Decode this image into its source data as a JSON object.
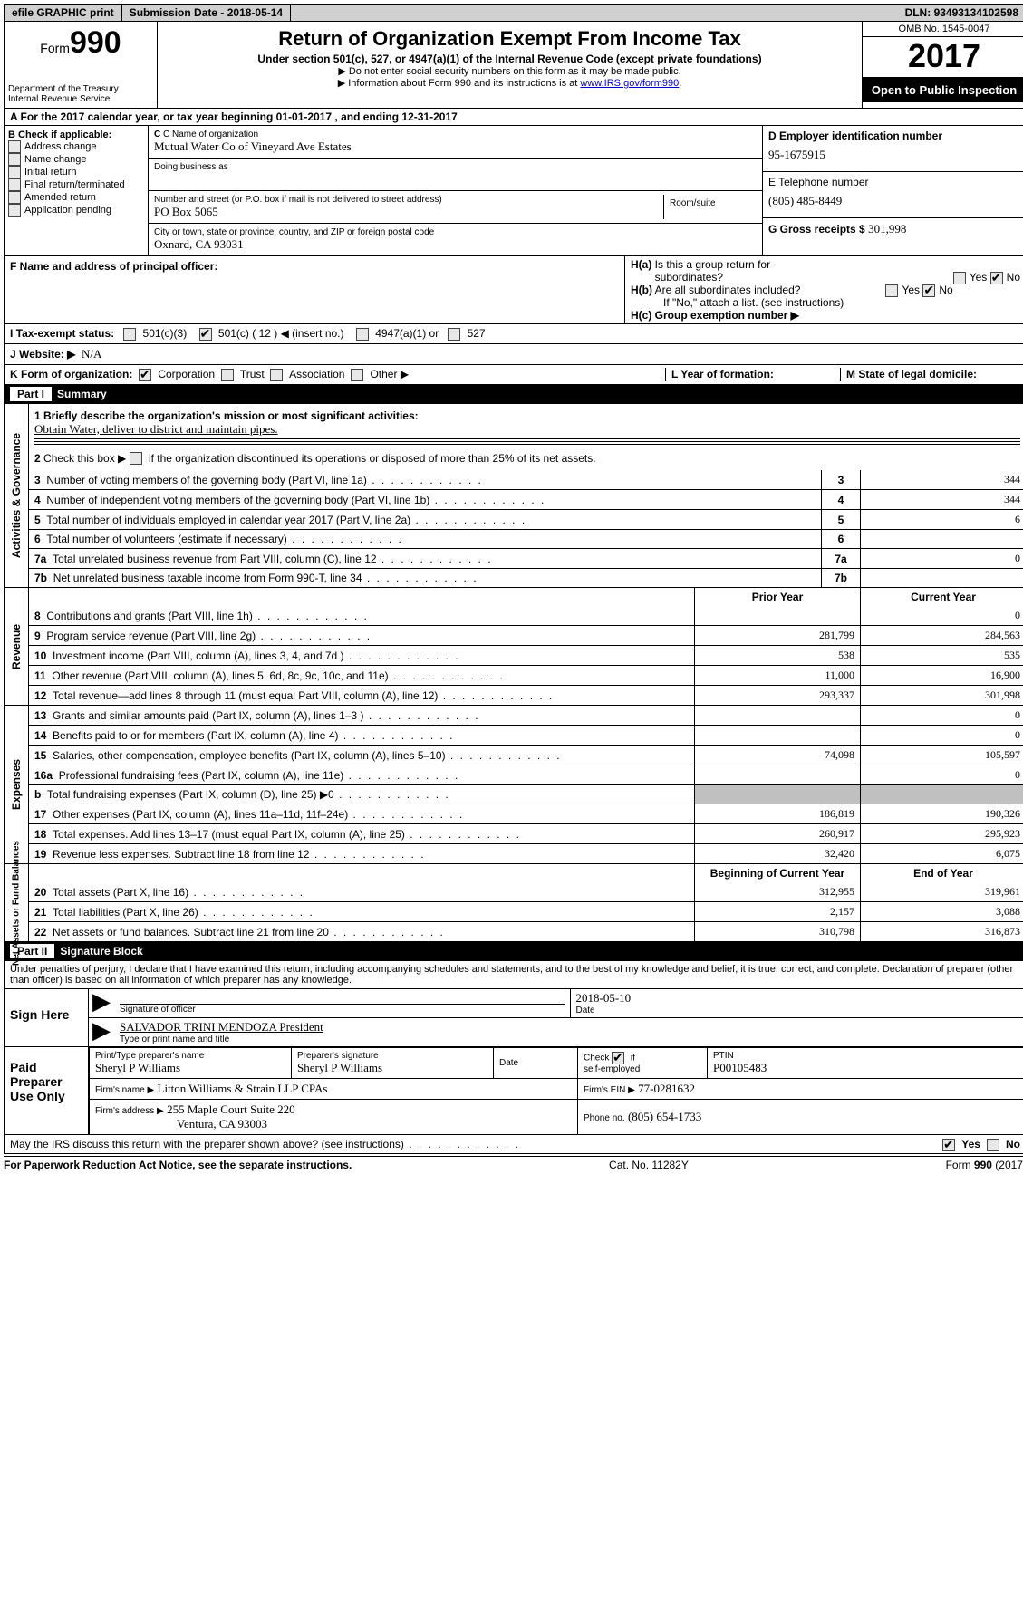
{
  "topbar": {
    "efile": "efile GRAPHIC print",
    "subdate_label": "Submission Date - ",
    "subdate": "2018-05-14",
    "dln_label": "DLN: ",
    "dln": "93493134102598"
  },
  "header": {
    "form_label": "Form",
    "form_no": "990",
    "dept1": "Department of the Treasury",
    "dept2": "Internal Revenue Service",
    "title": "Return of Organization Exempt From Income Tax",
    "subtitle": "Under section 501(c), 527, or 4947(a)(1) of the Internal Revenue Code (except private foundations)",
    "note1": "▶ Do not enter social security numbers on this form as it may be made public.",
    "note2_pre": "▶ Information about Form 990 and its instructions is at ",
    "note2_link": "www.IRS.gov/form990",
    "omb": "OMB No. 1545-0047",
    "year": "2017",
    "open": "Open to Public Inspection"
  },
  "A": {
    "text_pre": "A  For the 2017 calendar year, or tax year beginning ",
    "begin": "01-01-2017",
    "mid": "  , and ending ",
    "end": "12-31-2017"
  },
  "B": {
    "label": "B Check if applicable:",
    "items": [
      "Address change",
      "Name change",
      "Initial return",
      "Final return/terminated",
      "Amended return",
      "Application pending"
    ]
  },
  "C": {
    "name_label": "C Name of organization",
    "name": "Mutual Water Co of Vineyard Ave Estates",
    "dba_label": "Doing business as",
    "addr_label": "Number and street (or P.O. box if mail is not delivered to street address)",
    "room_label": "Room/suite",
    "addr": "PO Box 5065",
    "city_label": "City or town, state or province, country, and ZIP or foreign postal code",
    "city": "Oxnard, CA  93031"
  },
  "D": {
    "label": "D Employer identification number",
    "val": "95-1675915"
  },
  "E": {
    "label": "E Telephone number",
    "val": "(805) 485-8449"
  },
  "G": {
    "label": "G Gross receipts $ ",
    "val": "301,998"
  },
  "F": {
    "label": "F Name and address of principal officer:"
  },
  "H": {
    "a": "H(a)  Is this a group return for subordinates?",
    "b": "H(b)  Are all subordinates included?",
    "note": "If \"No,\" attach a list. (see instructions)",
    "c": "H(c)  Group exemption number ▶",
    "yes": "Yes",
    "no": "No"
  },
  "I": {
    "label": "I  Tax-exempt status:",
    "c3": "501(c)(3)",
    "c": "501(c) ( 12 ) ◀ (insert no.)",
    "a1": "4947(a)(1) or",
    "s527": "527"
  },
  "J": {
    "label": "J  Website: ▶",
    "val": "N/A"
  },
  "K": {
    "label": "K Form of organization:",
    "corp": "Corporation",
    "trust": "Trust",
    "assoc": "Association",
    "other": "Other ▶"
  },
  "L": {
    "label": "L Year of formation:"
  },
  "M": {
    "label": "M State of legal domicile:"
  },
  "part1": {
    "num": "Part I",
    "title": "Summary"
  },
  "gov": {
    "label": "Activities & Governance",
    "l1": "1 Briefly describe the organization's mission or most significant activities:",
    "l1v": "Obtain Water, deliver to district and maintain pipes.",
    "l2": "2  Check this box ▶           if the organization discontinued its operations or disposed of more than 25% of its net assets.",
    "rows": [
      {
        "n": "3",
        "t": "Number of voting members of the governing body (Part VI, line 1a)",
        "v": "344"
      },
      {
        "n": "4",
        "t": "Number of independent voting members of the governing body (Part VI, line 1b)",
        "v": "344"
      },
      {
        "n": "5",
        "t": "Total number of individuals employed in calendar year 2017 (Part V, line 2a)",
        "v": "6"
      },
      {
        "n": "6",
        "t": "Total number of volunteers (estimate if necessary)",
        "v": ""
      },
      {
        "n": "7a",
        "t": "Total unrelated business revenue from Part VIII, column (C), line 12",
        "v": "0"
      },
      {
        "n": "7b",
        "t": "Net unrelated business taxable income from Form 990-T, line 34",
        "v": ""
      }
    ]
  },
  "rev": {
    "label": "Revenue",
    "h1": "Prior Year",
    "h2": "Current Year",
    "rows": [
      {
        "n": "8",
        "t": "Contributions and grants (Part VIII, line 1h)",
        "p": "",
        "c": "0"
      },
      {
        "n": "9",
        "t": "Program service revenue (Part VIII, line 2g)",
        "p": "281,799",
        "c": "284,563"
      },
      {
        "n": "10",
        "t": "Investment income (Part VIII, column (A), lines 3, 4, and 7d )",
        "p": "538",
        "c": "535"
      },
      {
        "n": "11",
        "t": "Other revenue (Part VIII, column (A), lines 5, 6d, 8c, 9c, 10c, and 11e)",
        "p": "11,000",
        "c": "16,900"
      },
      {
        "n": "12",
        "t": "Total revenue—add lines 8 through 11 (must equal Part VIII, column (A), line 12)",
        "p": "293,337",
        "c": "301,998"
      }
    ]
  },
  "exp": {
    "label": "Expenses",
    "rows": [
      {
        "n": "13",
        "t": "Grants and similar amounts paid (Part IX, column (A), lines 1–3 )",
        "p": "",
        "c": "0"
      },
      {
        "n": "14",
        "t": "Benefits paid to or for members (Part IX, column (A), line 4)",
        "p": "",
        "c": "0"
      },
      {
        "n": "15",
        "t": "Salaries, other compensation, employee benefits (Part IX, column (A), lines 5–10)",
        "p": "74,098",
        "c": "105,597"
      },
      {
        "n": "16a",
        "t": "Professional fundraising fees (Part IX, column (A), line 11e)",
        "p": "",
        "c": "0"
      },
      {
        "n": "b",
        "t": "Total fundraising expenses (Part IX, column (D), line 25) ▶0",
        "p": "shade",
        "c": "shade"
      },
      {
        "n": "17",
        "t": "Other expenses (Part IX, column (A), lines 11a–11d, 11f–24e)",
        "p": "186,819",
        "c": "190,326"
      },
      {
        "n": "18",
        "t": "Total expenses. Add lines 13–17 (must equal Part IX, column (A), line 25)",
        "p": "260,917",
        "c": "295,923"
      },
      {
        "n": "19",
        "t": "Revenue less expenses. Subtract line 18 from line 12",
        "p": "32,420",
        "c": "6,075"
      }
    ]
  },
  "net": {
    "label": "Net Assets or Fund Balances",
    "h1": "Beginning of Current Year",
    "h2": "End of Year",
    "rows": [
      {
        "n": "20",
        "t": "Total assets (Part X, line 16)",
        "p": "312,955",
        "c": "319,961"
      },
      {
        "n": "21",
        "t": "Total liabilities (Part X, line 26)",
        "p": "2,157",
        "c": "3,088"
      },
      {
        "n": "22",
        "t": "Net assets or fund balances. Subtract line 21 from line 20",
        "p": "310,798",
        "c": "316,873"
      }
    ]
  },
  "part2": {
    "num": "Part II",
    "title": "Signature Block"
  },
  "sig": {
    "perjury": "Under penalties of perjury, I declare that I have examined this return, including accompanying schedules and statements, and to the best of my knowledge and belief, it is true, correct, and complete. Declaration of preparer (other than officer) is based on all information of which preparer has any knowledge.",
    "here": "Sign Here",
    "sig_label": "Signature of officer",
    "date_label": "Date",
    "date": "2018-05-10",
    "name": "SALVADOR TRINI MENDOZA President",
    "name_label": "Type or print name and title"
  },
  "prep": {
    "label": "Paid Preparer Use Only",
    "pt_label": "Print/Type preparer's name",
    "pt": "Sheryl P Williams",
    "ps_label": "Preparer's signature",
    "ps": "Sheryl P Williams",
    "d_label": "Date",
    "se_label": "Check          if self-employed",
    "ptin_label": "PTIN",
    "ptin": "P00105483",
    "fn_label": "Firm's name      ▶",
    "fn": "Litton Williams & Strain LLP CPAs",
    "fe_label": "Firm's EIN ▶",
    "fe": "77-0281632",
    "fa_label": "Firm's address ▶",
    "fa1": "255 Maple Court Suite 220",
    "fa2": "Ventura, CA  93003",
    "ph_label": "Phone no.",
    "ph": "(805) 654-1733"
  },
  "discuss": {
    "text": "May the IRS discuss this return with the preparer shown above? (see instructions)",
    "yes": "Yes",
    "no": "No"
  },
  "footer": {
    "l": "For Paperwork Reduction Act Notice, see the separate instructions.",
    "m": "Cat. No. 11282Y",
    "r": "Form 990 (2017)"
  }
}
